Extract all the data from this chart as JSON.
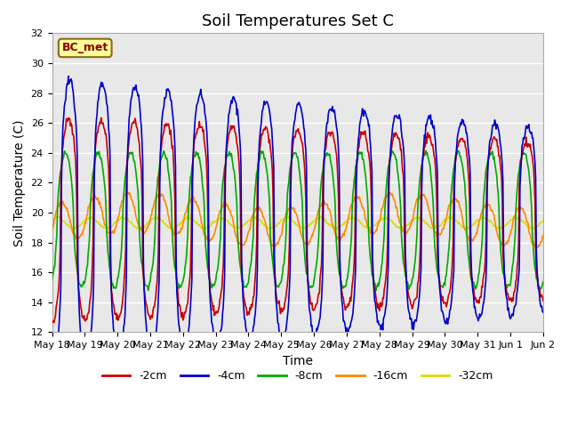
{
  "title": "Soil Temperatures Set C",
  "xlabel": "Time",
  "ylabel": "Soil Temperature (C)",
  "annotation": "BC_met",
  "ylim": [
    12,
    32
  ],
  "yticks": [
    12,
    14,
    16,
    18,
    20,
    22,
    24,
    26,
    28,
    30,
    32
  ],
  "xtick_labels": [
    "May 18",
    "May 19",
    "May 20",
    "May 21",
    "May 22",
    "May 23",
    "May 24",
    "May 25",
    "May 26",
    "May 27",
    "May 28",
    "May 29",
    "May 30",
    "May 31",
    "Jun 1",
    "Jun 2"
  ],
  "series": {
    "-2cm": {
      "color": "#cc0000",
      "lw": 1.2
    },
    "-4cm": {
      "color": "#0000cc",
      "lw": 1.2
    },
    "-8cm": {
      "color": "#00aa00",
      "lw": 1.2
    },
    "-16cm": {
      "color": "#ff8800",
      "lw": 1.2
    },
    "-32cm": {
      "color": "#dddd00",
      "lw": 1.2
    }
  },
  "legend_order": [
    "-2cm",
    "-4cm",
    "-8cm",
    "-16cm",
    "-32cm"
  ],
  "background_color": "#e8e8e8",
  "figure_bg": "#ffffff",
  "grid_color": "#ffffff",
  "title_fontsize": 13,
  "axis_fontsize": 10,
  "tick_fontsize": 8
}
